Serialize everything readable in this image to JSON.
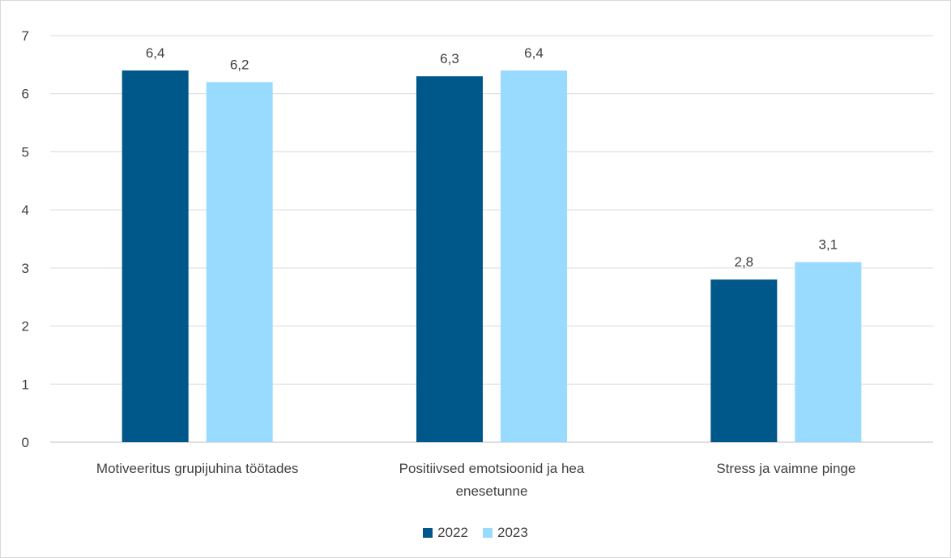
{
  "chart_data": {
    "type": "bar",
    "title": "",
    "xlabel": "",
    "ylabel": "",
    "ylim": [
      0,
      7
    ],
    "yticks": [
      "0",
      "1",
      "2",
      "3",
      "4",
      "5",
      "6",
      "7"
    ],
    "grid": true,
    "legend_position": "bottom",
    "categories": [
      [
        "Motiveeritus grupijuhina töötades"
      ],
      [
        "Positiivsed emotsioonid ja hea",
        "enesetunne"
      ],
      [
        "Stress ja vaimne pinge"
      ]
    ],
    "series": [
      {
        "name": "2022",
        "color": "#00578A",
        "values": [
          6.4,
          6.3,
          2.8
        ],
        "labels": [
          "6,4",
          "6,3",
          "2,8"
        ]
      },
      {
        "name": "2023",
        "color": "#99DAFF",
        "values": [
          6.2,
          6.4,
          3.1
        ],
        "labels": [
          "6,2",
          "6,4",
          "3,1"
        ]
      }
    ]
  }
}
